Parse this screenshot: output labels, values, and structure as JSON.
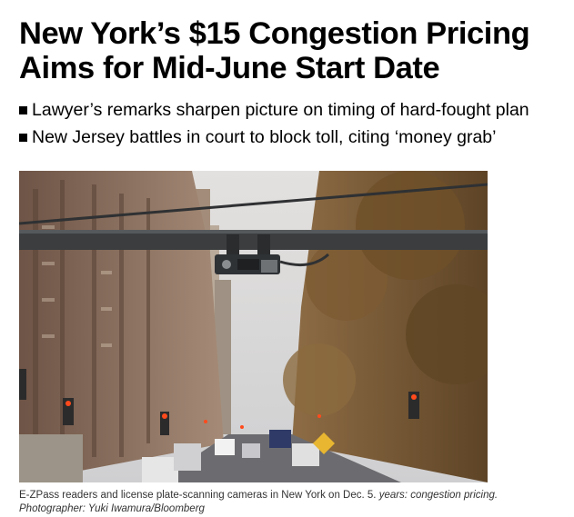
{
  "article": {
    "headline": "New York’s $15 Congestion Pricing Aims for Mid-June Start Date",
    "bullets": [
      "Lawyer’s remarks sharpen picture on timing of hard-fought plan",
      "New Jersey battles in court to block toll, citing ‘money grab’"
    ],
    "caption": {
      "text": "E-ZPass readers and license plate-scanning cameras in New York on Dec. 5.",
      "italic": "years: congestion pricing. Photographer: Yuki Iwamura/Bloomberg"
    }
  },
  "photo": {
    "icon": "street-photo-with-toll-gantry",
    "colors": {
      "sky": "#dcdcdc",
      "buildings": "#8a6f5e",
      "trees": "#7a5a32",
      "gantry": "#3b3d3f"
    }
  }
}
